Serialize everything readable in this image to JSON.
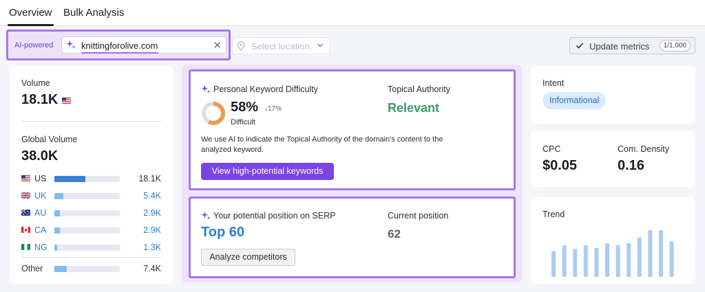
{
  "tabs": [
    {
      "label": "Overview",
      "active": true
    },
    {
      "label": "Bulk Analysis",
      "active": false
    }
  ],
  "toolbar": {
    "ai_label": "AI-powered",
    "domain_value": "knittingforolive.com",
    "location_placeholder": "Select location",
    "update_label": "Update metrics",
    "update_count": "1/1,000"
  },
  "volume_card": {
    "volume_label": "Volume",
    "volume_value": "18.1K",
    "global_label": "Global Volume",
    "global_value": "38.0K",
    "countries": [
      {
        "code": "US",
        "value": "18.1K",
        "share": 0.47
      },
      {
        "code": "UK",
        "value": "5.4K",
        "share": 0.14
      },
      {
        "code": "AU",
        "value": "2.9K",
        "share": 0.08
      },
      {
        "code": "CA",
        "value": "2.9K",
        "share": 0.08
      },
      {
        "code": "NG",
        "value": "1.3K",
        "share": 0.04
      }
    ],
    "other": {
      "code": "Other",
      "value": "7.4K",
      "share": 0.19
    }
  },
  "pkd_card": {
    "title": "Personal Keyword Difficulty",
    "percent": "58%",
    "percent_value": 58,
    "change": "17%",
    "level": "Difficult",
    "topical_label": "Topical Authority",
    "topical_value": "Relevant",
    "note": "We use AI to indicate the Topical Authority of the domain's content to the analyzed keyword.",
    "button": "View high-potential keywords"
  },
  "serp_card": {
    "title": "Your potential position on SERP",
    "value": "Top 60",
    "current_label": "Current position",
    "current_value": "62",
    "button": "Analyze competitors"
  },
  "intent_card": {
    "label": "Intent",
    "value": "Informational"
  },
  "cpc_card": {
    "cpc_label": "CPC",
    "cpc_value": "$0.05",
    "density_label": "Com. Density",
    "density_value": "0.16"
  },
  "trend_card": {
    "label": "Trend",
    "values": [
      0.55,
      0.68,
      0.6,
      0.68,
      0.62,
      0.72,
      0.68,
      0.72,
      0.84,
      1.0,
      1.0,
      0.76,
      0.55,
      0.55
    ]
  },
  "colors": {
    "accent_purple": "#7a45e6",
    "ai_border": "#a775e9",
    "relevant_green": "#3e9a6d",
    "link_blue": "#2f7fc9",
    "donut_orange": "#f09c4e",
    "trend_bar": "#a9cdf5"
  }
}
